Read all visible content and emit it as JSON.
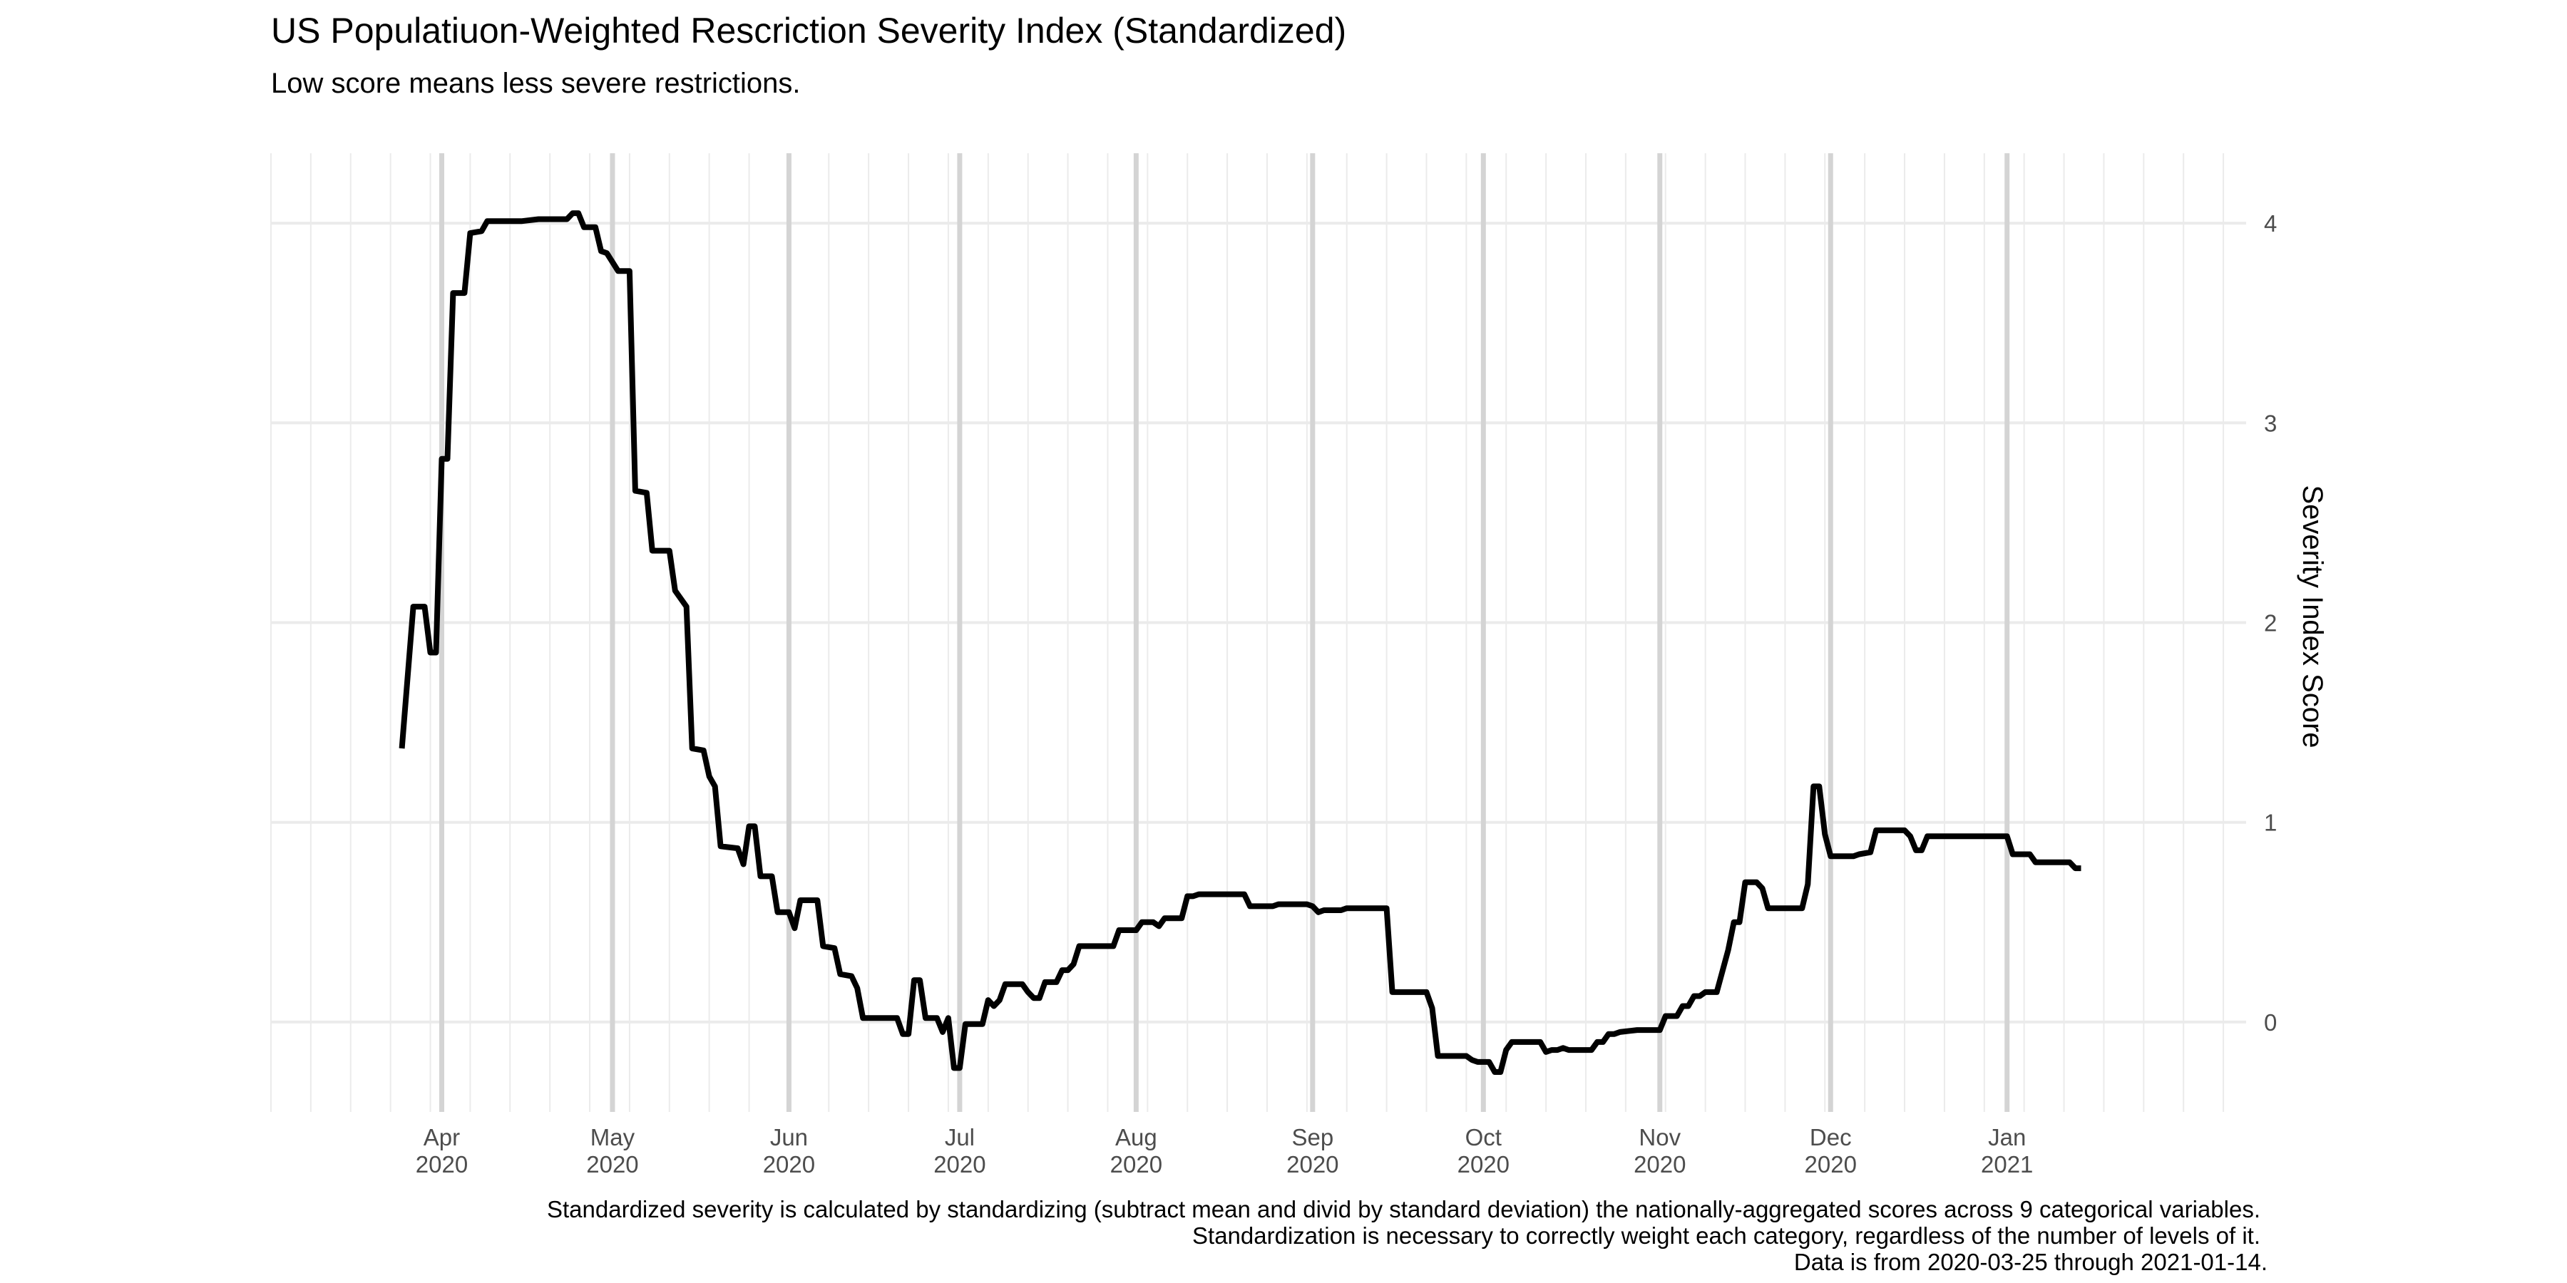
{
  "chart_data": {
    "type": "line",
    "title": "US Populatiuon-Weighted Rescriction Severity Index (Standardized)",
    "subtitle": "Low score means less severe restrictions.",
    "xlabel": "",
    "ylabel": "Severity Index Score",
    "y_axis_position": "right",
    "ylim": [
      -0.45,
      4.35
    ],
    "yticks": [
      "4",
      "3",
      "2",
      "1",
      "0"
    ],
    "xlim": [
      "2020-03-02",
      "2021-02-12"
    ],
    "xticks": [
      {
        "date": "2020-04-01",
        "month": "Apr",
        "year": "2020"
      },
      {
        "date": "2020-05-01",
        "month": "May",
        "year": "2020"
      },
      {
        "date": "2020-06-01",
        "month": "Jun",
        "year": "2020"
      },
      {
        "date": "2020-07-01",
        "month": "Jul",
        "year": "2020"
      },
      {
        "date": "2020-08-01",
        "month": "Aug",
        "year": "2020"
      },
      {
        "date": "2020-09-01",
        "month": "Sep",
        "year": "2020"
      },
      {
        "date": "2020-10-01",
        "month": "Oct",
        "year": "2020"
      },
      {
        "date": "2020-11-01",
        "month": "Nov",
        "year": "2020"
      },
      {
        "date": "2020-12-01",
        "month": "Dec",
        "year": "2020"
      },
      {
        "date": "2021-01-01",
        "month": "Jan",
        "year": "2021"
      }
    ],
    "grid": true,
    "legend": "none",
    "line_color": "#000000",
    "series": [
      {
        "points": [
          [
            "2020-03-25",
            1.37
          ],
          [
            "2020-03-27",
            2.08
          ],
          [
            "2020-03-29",
            2.08
          ],
          [
            "2020-03-30",
            1.85
          ],
          [
            "2020-03-31",
            1.85
          ],
          [
            "2020-04-01",
            2.82
          ],
          [
            "2020-04-02",
            2.82
          ],
          [
            "2020-04-03",
            3.65
          ],
          [
            "2020-04-05",
            3.65
          ],
          [
            "2020-04-06",
            3.95
          ],
          [
            "2020-04-08",
            3.96
          ],
          [
            "2020-04-09",
            4.01
          ],
          [
            "2020-04-15",
            4.01
          ],
          [
            "2020-04-18",
            4.02
          ],
          [
            "2020-04-23",
            4.02
          ],
          [
            "2020-04-24",
            4.05
          ],
          [
            "2020-04-25",
            4.05
          ],
          [
            "2020-04-26",
            3.98
          ],
          [
            "2020-04-28",
            3.98
          ],
          [
            "2020-04-29",
            3.86
          ],
          [
            "2020-04-30",
            3.85
          ],
          [
            "2020-05-02",
            3.76
          ],
          [
            "2020-05-04",
            3.76
          ],
          [
            "2020-05-05",
            2.66
          ],
          [
            "2020-05-07",
            2.65
          ],
          [
            "2020-05-08",
            2.36
          ],
          [
            "2020-05-11",
            2.36
          ],
          [
            "2020-05-12",
            2.16
          ],
          [
            "2020-05-14",
            2.08
          ],
          [
            "2020-05-15",
            1.37
          ],
          [
            "2020-05-17",
            1.36
          ],
          [
            "2020-05-18",
            1.23
          ],
          [
            "2020-05-19",
            1.18
          ],
          [
            "2020-05-20",
            0.88
          ],
          [
            "2020-05-23",
            0.87
          ],
          [
            "2020-05-24",
            0.79
          ],
          [
            "2020-05-25",
            0.98
          ],
          [
            "2020-05-26",
            0.98
          ],
          [
            "2020-05-27",
            0.73
          ],
          [
            "2020-05-29",
            0.73
          ],
          [
            "2020-05-30",
            0.55
          ],
          [
            "2020-06-01",
            0.55
          ],
          [
            "2020-06-02",
            0.47
          ],
          [
            "2020-06-03",
            0.61
          ],
          [
            "2020-06-06",
            0.61
          ],
          [
            "2020-06-07",
            0.38
          ],
          [
            "2020-06-09",
            0.37
          ],
          [
            "2020-06-10",
            0.24
          ],
          [
            "2020-06-12",
            0.23
          ],
          [
            "2020-06-13",
            0.17
          ],
          [
            "2020-06-14",
            0.02
          ],
          [
            "2020-06-20",
            0.02
          ],
          [
            "2020-06-21",
            -0.06
          ],
          [
            "2020-06-22",
            -0.06
          ],
          [
            "2020-06-23",
            0.21
          ],
          [
            "2020-06-24",
            0.21
          ],
          [
            "2020-06-25",
            0.02
          ],
          [
            "2020-06-27",
            0.02
          ],
          [
            "2020-06-28",
            -0.05
          ],
          [
            "2020-06-29",
            0.02
          ],
          [
            "2020-06-30",
            -0.23
          ],
          [
            "2020-07-01",
            -0.23
          ],
          [
            "2020-07-02",
            -0.01
          ],
          [
            "2020-07-05",
            -0.01
          ],
          [
            "2020-07-06",
            0.11
          ],
          [
            "2020-07-07",
            0.08
          ],
          [
            "2020-07-08",
            0.11
          ],
          [
            "2020-07-09",
            0.19
          ],
          [
            "2020-07-12",
            0.19
          ],
          [
            "2020-07-13",
            0.15
          ],
          [
            "2020-07-14",
            0.12
          ],
          [
            "2020-07-15",
            0.12
          ],
          [
            "2020-07-16",
            0.2
          ],
          [
            "2020-07-18",
            0.2
          ],
          [
            "2020-07-19",
            0.26
          ],
          [
            "2020-07-20",
            0.26
          ],
          [
            "2020-07-21",
            0.29
          ],
          [
            "2020-07-22",
            0.38
          ],
          [
            "2020-07-28",
            0.38
          ],
          [
            "2020-07-29",
            0.46
          ],
          [
            "2020-08-01",
            0.46
          ],
          [
            "2020-08-02",
            0.5
          ],
          [
            "2020-08-04",
            0.5
          ],
          [
            "2020-08-05",
            0.48
          ],
          [
            "2020-08-06",
            0.52
          ],
          [
            "2020-08-09",
            0.52
          ],
          [
            "2020-08-10",
            0.63
          ],
          [
            "2020-08-11",
            0.63
          ],
          [
            "2020-08-12",
            0.64
          ],
          [
            "2020-08-20",
            0.64
          ],
          [
            "2020-08-21",
            0.58
          ],
          [
            "2020-08-25",
            0.58
          ],
          [
            "2020-08-26",
            0.59
          ],
          [
            "2020-08-31",
            0.59
          ],
          [
            "2020-09-01",
            0.58
          ],
          [
            "2020-09-02",
            0.55
          ],
          [
            "2020-09-03",
            0.56
          ],
          [
            "2020-09-06",
            0.56
          ],
          [
            "2020-09-07",
            0.57
          ],
          [
            "2020-09-14",
            0.57
          ],
          [
            "2020-09-15",
            0.15
          ],
          [
            "2020-09-21",
            0.15
          ],
          [
            "2020-09-22",
            0.07
          ],
          [
            "2020-09-23",
            -0.17
          ],
          [
            "2020-09-28",
            -0.17
          ],
          [
            "2020-09-29",
            -0.19
          ],
          [
            "2020-09-30",
            -0.2
          ],
          [
            "2020-10-02",
            -0.2
          ],
          [
            "2020-10-03",
            -0.25
          ],
          [
            "2020-10-04",
            -0.25
          ],
          [
            "2020-10-05",
            -0.14
          ],
          [
            "2020-10-06",
            -0.1
          ],
          [
            "2020-10-11",
            -0.1
          ],
          [
            "2020-10-12",
            -0.15
          ],
          [
            "2020-10-13",
            -0.14
          ],
          [
            "2020-10-14",
            -0.14
          ],
          [
            "2020-10-15",
            -0.13
          ],
          [
            "2020-10-16",
            -0.14
          ],
          [
            "2020-10-20",
            -0.14
          ],
          [
            "2020-10-21",
            -0.1
          ],
          [
            "2020-10-22",
            -0.1
          ],
          [
            "2020-10-23",
            -0.06
          ],
          [
            "2020-10-24",
            -0.06
          ],
          [
            "2020-10-25",
            -0.05
          ],
          [
            "2020-10-28",
            -0.04
          ],
          [
            "2020-11-01",
            -0.04
          ],
          [
            "2020-11-02",
            0.03
          ],
          [
            "2020-11-04",
            0.03
          ],
          [
            "2020-11-05",
            0.08
          ],
          [
            "2020-11-06",
            0.08
          ],
          [
            "2020-11-07",
            0.13
          ],
          [
            "2020-11-08",
            0.13
          ],
          [
            "2020-11-09",
            0.15
          ],
          [
            "2020-11-11",
            0.15
          ],
          [
            "2020-11-13",
            0.36
          ],
          [
            "2020-11-14",
            0.5
          ],
          [
            "2020-11-15",
            0.5
          ],
          [
            "2020-11-16",
            0.7
          ],
          [
            "2020-11-18",
            0.7
          ],
          [
            "2020-11-19",
            0.67
          ],
          [
            "2020-11-20",
            0.57
          ],
          [
            "2020-11-26",
            0.57
          ],
          [
            "2020-11-27",
            0.69
          ],
          [
            "2020-11-28",
            1.18
          ],
          [
            "2020-11-29",
            1.18
          ],
          [
            "2020-11-30",
            0.94
          ],
          [
            "2020-12-01",
            0.83
          ],
          [
            "2020-12-05",
            0.83
          ],
          [
            "2020-12-06",
            0.84
          ],
          [
            "2020-12-08",
            0.85
          ],
          [
            "2020-12-09",
            0.96
          ],
          [
            "2020-12-14",
            0.96
          ],
          [
            "2020-12-15",
            0.93
          ],
          [
            "2020-12-16",
            0.86
          ],
          [
            "2020-12-17",
            0.86
          ],
          [
            "2020-12-18",
            0.93
          ],
          [
            "2021-01-01",
            0.93
          ],
          [
            "2021-01-02",
            0.84
          ],
          [
            "2021-01-05",
            0.84
          ],
          [
            "2021-01-06",
            0.8
          ],
          [
            "2021-01-12",
            0.8
          ],
          [
            "2021-01-13",
            0.77
          ],
          [
            "2021-01-14",
            0.77
          ]
        ]
      }
    ],
    "caption": [
      "Standardized severity is calculated by standardizing (subtract mean and divid by standard deviation) the nationally-aggregated scores across 9 categorical variables.",
      "Standardization is necessary to correctly weight each category, regardless of the number of levels of it.",
      "Data is from 2020-03-25 through 2021-01-14."
    ]
  }
}
